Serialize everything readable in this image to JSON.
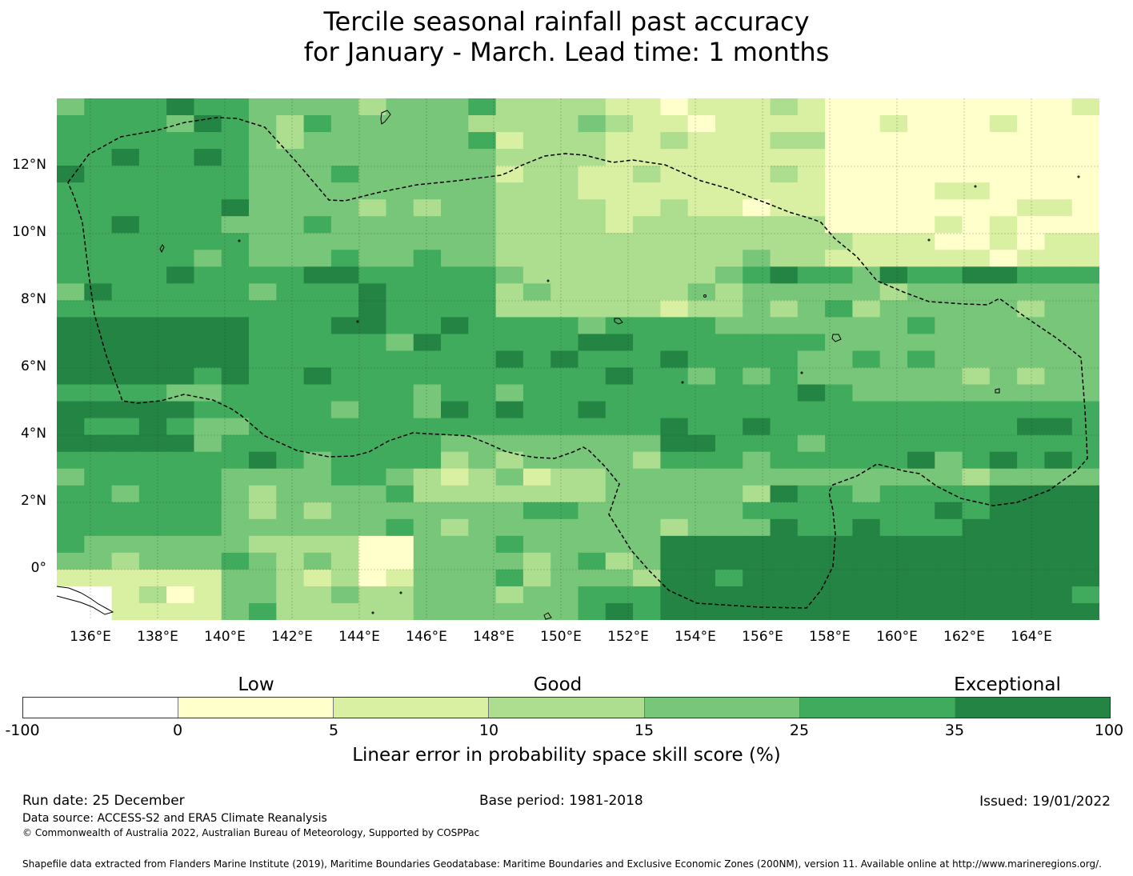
{
  "title": {
    "line1": "Tercile seasonal rainfall past accuracy",
    "line2": "for January - March. Lead time: 1 months"
  },
  "map": {
    "lat_labels": [
      "12°N",
      "10°N",
      "8°N",
      "6°N",
      "4°N",
      "2°N",
      "0°"
    ],
    "lon_labels": [
      "136°E",
      "138°E",
      "140°E",
      "142°E",
      "144°E",
      "146°E",
      "148°E",
      "150°E",
      "152°E",
      "154°E",
      "156°E",
      "158°E",
      "160°E",
      "162°E",
      "164°E"
    ]
  },
  "legend": {
    "categories": [
      "Low",
      "Good",
      "Exceptional"
    ],
    "ticks": [
      "-100",
      "0",
      "5",
      "10",
      "15",
      "25",
      "35",
      "100"
    ],
    "colors": [
      "#ffffff",
      "#ffffcc",
      "#d9f0a3",
      "#addd8e",
      "#78c679",
      "#41ab5d",
      "#238443"
    ],
    "label": "Linear error in probability space skill score (%)"
  },
  "footer": {
    "run_date": "Run date: 25 December",
    "base_period": "Base period: 1981-2018",
    "issued": "Issued: 19/01/2022",
    "data_source": "Data source: ACCESS-S2 and ERA5 Climate Reanalysis",
    "copyright": "© Commonwealth of Australia 2022, Australian Bureau of Meteorology, Supported by COSPPac",
    "shapefile": "Shapefile data extracted from Flanders Marine Institute (2019), Maritime Boundaries Geodatabase: Maritime Boundaries and Exclusive Economic Zones (200NM), version 11. Available online at http://www.marineregions.org/."
  }
}
